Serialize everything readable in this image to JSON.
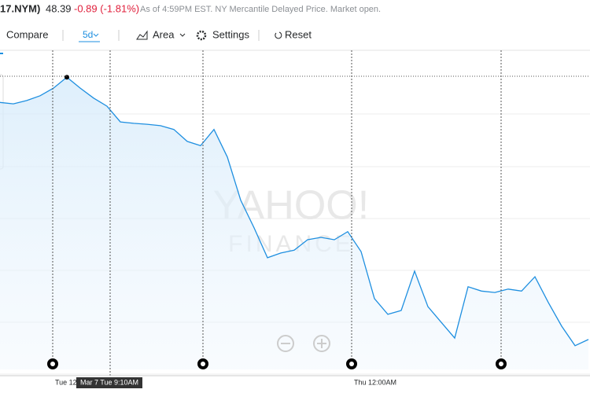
{
  "header": {
    "symbol": "17.NYM)",
    "price": "48.39",
    "change": "-0.89 (-1.81%)",
    "note": "As of 4:59PM EST. NY Mercantile Delayed Price. Market open."
  },
  "toolbar": {
    "compare": "Compare",
    "range": "5d",
    "chart_type": "Area",
    "settings": "Settings",
    "reset": "Reset"
  },
  "watermark": {
    "line1": "YAHOO!",
    "line2": "FINANCE"
  },
  "x_labels": [
    "Tue 12:",
    "Thu 12:00AM"
  ],
  "tooltip": "Mar 7 Tue 9:10AM",
  "chart_data": {
    "type": "area",
    "color": "#1e8fe0",
    "values": [
      53.42,
      53.39,
      53.46,
      53.56,
      53.72,
      53.95,
      53.72,
      53.51,
      53.34,
      53.01,
      52.98,
      52.96,
      52.93,
      52.85,
      52.6,
      52.51,
      52.85,
      52.27,
      51.36,
      50.78,
      50.15,
      50.25,
      50.31,
      50.53,
      50.58,
      50.53,
      50.7,
      50.28,
      49.29,
      48.96,
      49.04,
      49.87,
      49.12,
      48.79,
      48.46,
      49.54,
      49.45,
      49.42,
      49.49,
      49.45,
      49.75,
      49.21,
      48.71,
      48.3,
      48.43
    ],
    "ylim": [
      47.8,
      54.5
    ]
  }
}
